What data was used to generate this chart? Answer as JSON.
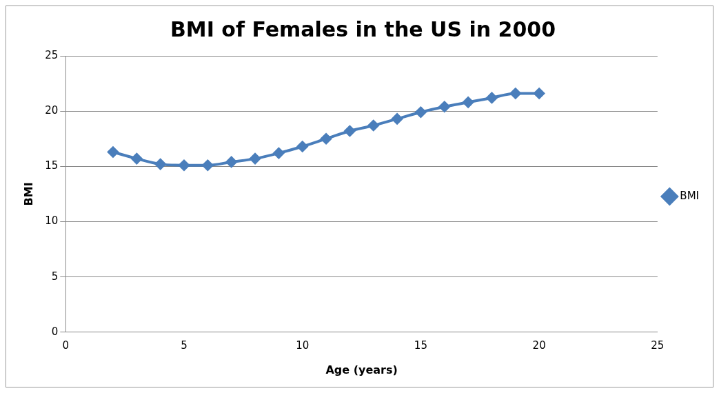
{
  "chart_data": {
    "type": "line",
    "title": "BMI of Females in the US in 2000",
    "xlabel": "Age (years)",
    "ylabel": "BMI",
    "x": [
      2,
      3,
      4,
      5,
      6,
      7,
      8,
      9,
      10,
      11,
      12,
      13,
      14,
      15,
      16,
      17,
      18,
      19,
      20
    ],
    "series": [
      {
        "name": "BMI",
        "color": "#4a7ebb",
        "values": [
          16.3,
          15.7,
          15.2,
          15.1,
          15.1,
          15.4,
          15.7,
          16.2,
          16.8,
          17.5,
          18.2,
          18.7,
          19.3,
          19.9,
          20.4,
          20.8,
          21.2,
          21.6,
          21.6
        ]
      }
    ],
    "xlim": [
      0,
      25
    ],
    "xticks": [
      0,
      5,
      10,
      15,
      20,
      25
    ],
    "ylim": [
      0,
      25
    ],
    "yticks": [
      0,
      5,
      10,
      15,
      20,
      25
    ],
    "grid": "y",
    "legend": "right",
    "marker": "diamond",
    "line_style": "solid"
  }
}
